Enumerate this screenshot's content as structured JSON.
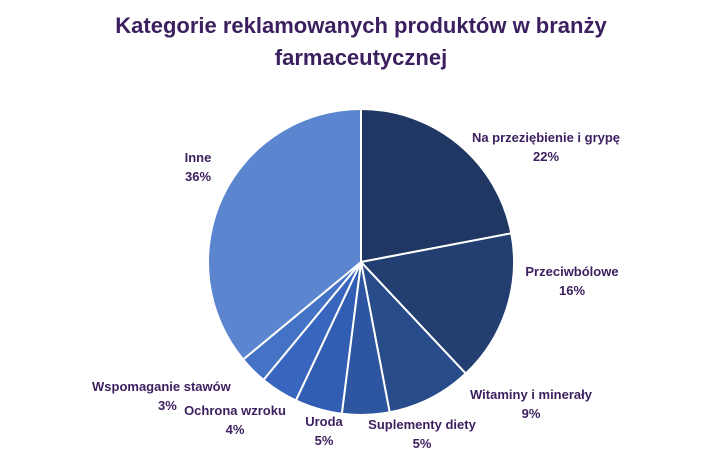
{
  "chart_data": {
    "type": "pie",
    "title": "Kategorie reklamowanych produktów w branży farmaceutycznej",
    "legend": "none",
    "slices": [
      {
        "label": "Na przeziębienie i grypę",
        "value": 22,
        "value_label": "22%",
        "color": "#203764"
      },
      {
        "label": "Przeciwbólowe",
        "value": 16,
        "value_label": "16%",
        "color": "#233f71"
      },
      {
        "label": "Witaminy i minerały",
        "value": 9,
        "value_label": "9%",
        "color": "#284c8a"
      },
      {
        "label": "Suplementy diety",
        "value": 5,
        "value_label": "5%",
        "color": "#2d55a0"
      },
      {
        "label": "Uroda",
        "value": 5,
        "value_label": "5%",
        "color": "#315eb3"
      },
      {
        "label": "Ochrona wzroku",
        "value": 4,
        "value_label": "4%",
        "color": "#3866bf"
      },
      {
        "label": "Wspomaganie stawów",
        "value": 3,
        "value_label": "3%",
        "color": "#4472c4"
      },
      {
        "label": "Inne",
        "value": 36,
        "value_label": "36%",
        "color": "#5b85cf"
      }
    ]
  }
}
